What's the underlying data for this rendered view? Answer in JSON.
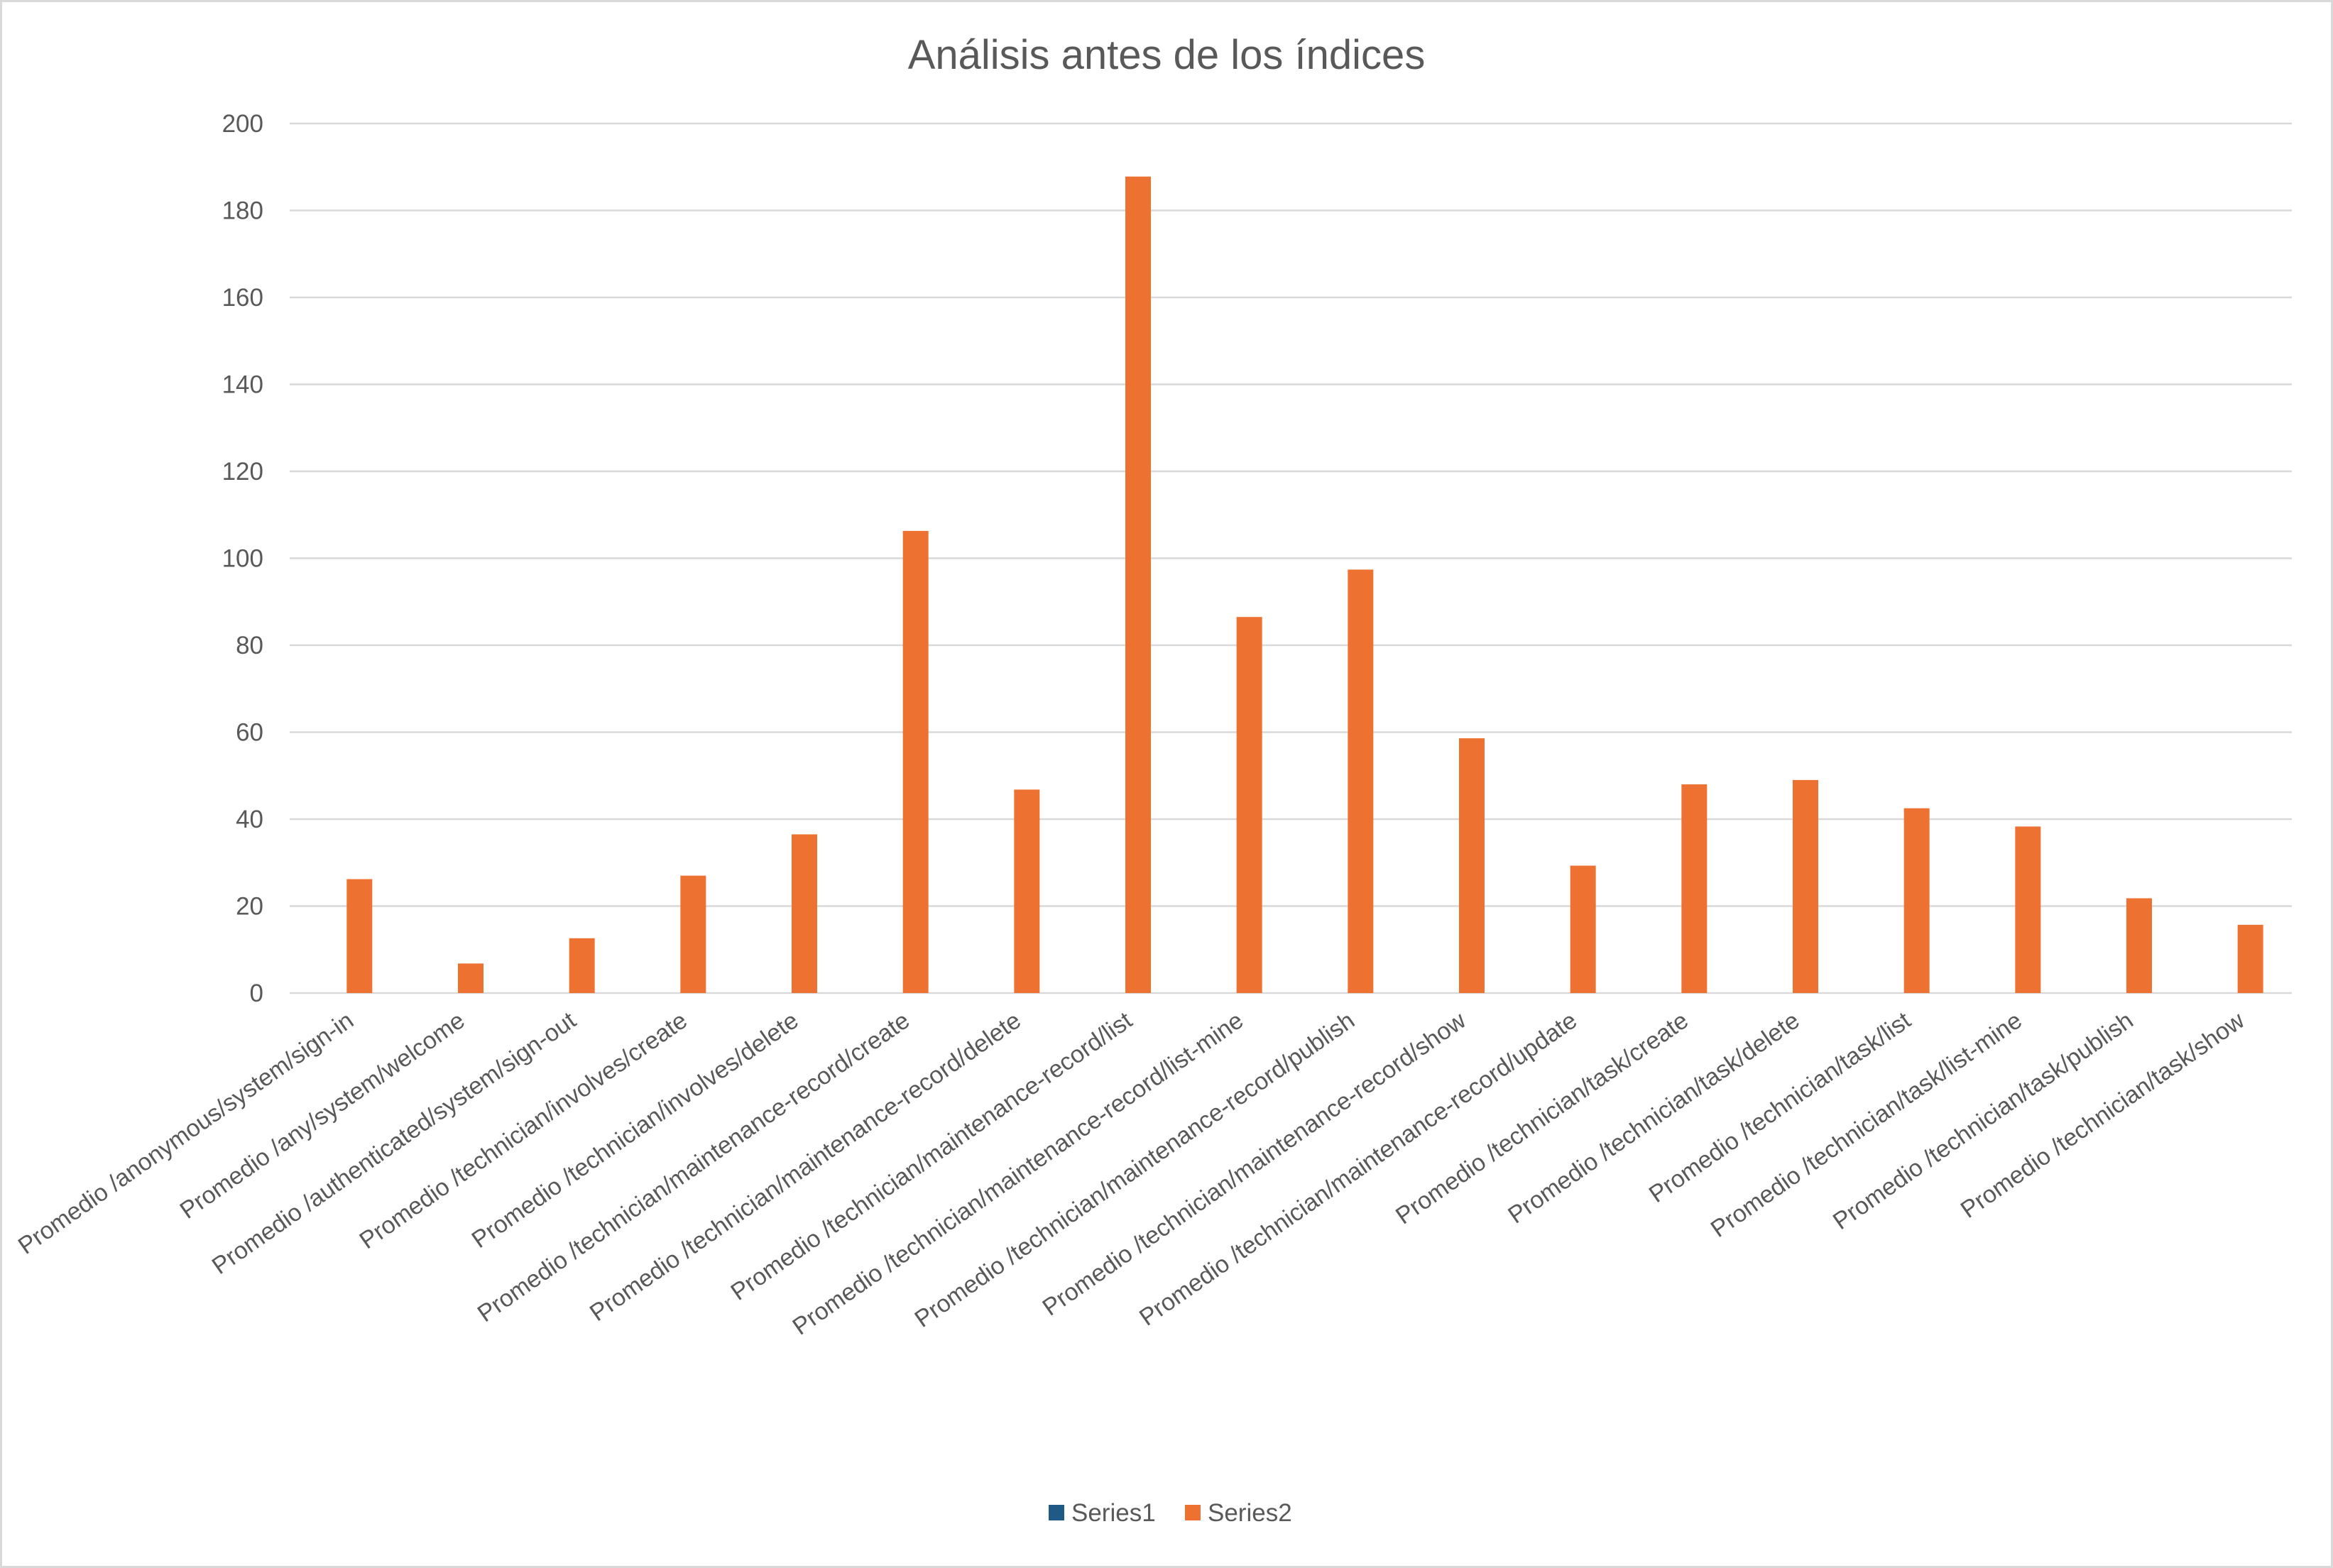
{
  "chart_data": {
    "type": "bar",
    "title": "Análisis antes de los índices",
    "xlabel": "",
    "ylabel": "",
    "ylim": [
      0,
      200
    ],
    "yticks": [
      0,
      20,
      40,
      60,
      80,
      100,
      120,
      140,
      160,
      180,
      200
    ],
    "grid": true,
    "legend_position": "bottom",
    "categories": [
      "Promedio /anonymous/system/sign-in",
      "Promedio /any/system/welcome",
      "Promedio /authenticated/system/sign-out",
      "Promedio /technician/involves/create",
      "Promedio /technician/involves/delete",
      "Promedio /technician/maintenance-record/create",
      "Promedio /technician/maintenance-record/delete",
      "Promedio /technician/maintenance-record/list",
      "Promedio /technician/maintenance-record/list-mine",
      "Promedio /technician/maintenance-record/publish",
      "Promedio /technician/maintenance-record/show",
      "Promedio /technician/maintenance-record/update",
      "Promedio /technician/task/create",
      "Promedio /technician/task/delete",
      "Promedio /technician/task/list",
      "Promedio /technician/task/list-mine",
      "Promedio /technician/task/publish",
      "Promedio /technician/task/show"
    ],
    "series": [
      {
        "name": "Series1",
        "color": "#1f5a86",
        "values": [
          0,
          0,
          0,
          0,
          0,
          0,
          0,
          0,
          0,
          0,
          0,
          0,
          0,
          0,
          0,
          0,
          0,
          0
        ]
      },
      {
        "name": "Series2",
        "color": "#ed7232",
        "values": [
          26.2,
          6.8,
          12.6,
          27.0,
          36.5,
          106.3,
          46.8,
          187.8,
          86.5,
          97.4,
          58.6,
          29.3,
          48.0,
          49.0,
          42.5,
          38.3,
          21.8,
          15.7
        ]
      }
    ]
  }
}
